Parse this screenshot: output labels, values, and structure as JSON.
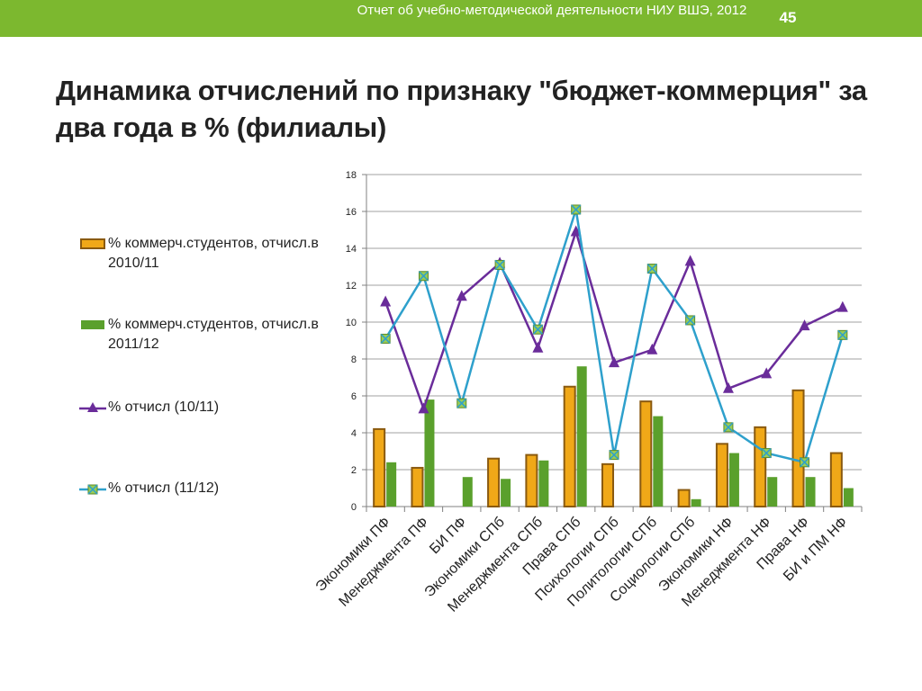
{
  "header": {
    "report_title": "Отчет об учебно-методической деятельности НИУ ВШЭ, 2012",
    "page_number": "45"
  },
  "slide": {
    "title": "Динамика отчислений по признаку \"бюджет-коммерция\" за два года в % (филиалы)"
  },
  "colors": {
    "header_bg": "#7cb82f",
    "bar_2010": "#f0a818",
    "bar_2010_border": "#8a5a10",
    "bar_2011": "#5aa02c",
    "line_1011": "#6a2c9a",
    "line_1112": "#2ea0cc"
  },
  "chart_data": {
    "type": "bar",
    "title": "",
    "xlabel": "",
    "ylabel": "",
    "ylim": [
      0,
      18
    ],
    "yticks": [
      0,
      2,
      4,
      6,
      8,
      10,
      12,
      14,
      16,
      18
    ],
    "grid": "horizontal",
    "legend_position": "left",
    "categories": [
      "Экономики ПФ",
      "Менеджмента ПФ",
      "БИ ПФ",
      "Экономики СПб",
      "Менеджмента СПб",
      "Права СПб",
      "Психологии СПб",
      "Политологии СПб",
      "Социологии СПб",
      "Экономики НФ",
      "Менеджмента НФ",
      "Права НФ",
      "БИ и ПМ НФ"
    ],
    "series": [
      {
        "name": "% коммерч.студентов, отчисл.в 2010/11",
        "kind": "bar",
        "values": [
          4.2,
          2.1,
          0,
          2.6,
          2.8,
          6.5,
          2.3,
          5.7,
          0.9,
          3.4,
          4.3,
          6.3,
          2.9
        ]
      },
      {
        "name": "% коммерч.студентов, отчисл.в 2011/12",
        "kind": "bar",
        "values": [
          2.4,
          5.8,
          1.6,
          1.5,
          2.5,
          7.6,
          0,
          4.9,
          0.4,
          2.9,
          1.6,
          1.6,
          1.0
        ]
      },
      {
        "name": "% отчисл (10/11)",
        "kind": "line",
        "marker": "triangle",
        "values": [
          11.1,
          5.3,
          11.4,
          13.2,
          8.6,
          14.9,
          7.8,
          8.5,
          13.3,
          6.4,
          7.2,
          9.8,
          10.8
        ]
      },
      {
        "name": "% отчисл (11/12)",
        "kind": "line",
        "marker": "x-square",
        "values": [
          9.1,
          12.5,
          5.6,
          13.1,
          9.6,
          16.1,
          2.8,
          12.9,
          10.1,
          4.3,
          2.9,
          2.4,
          9.3
        ]
      }
    ]
  }
}
